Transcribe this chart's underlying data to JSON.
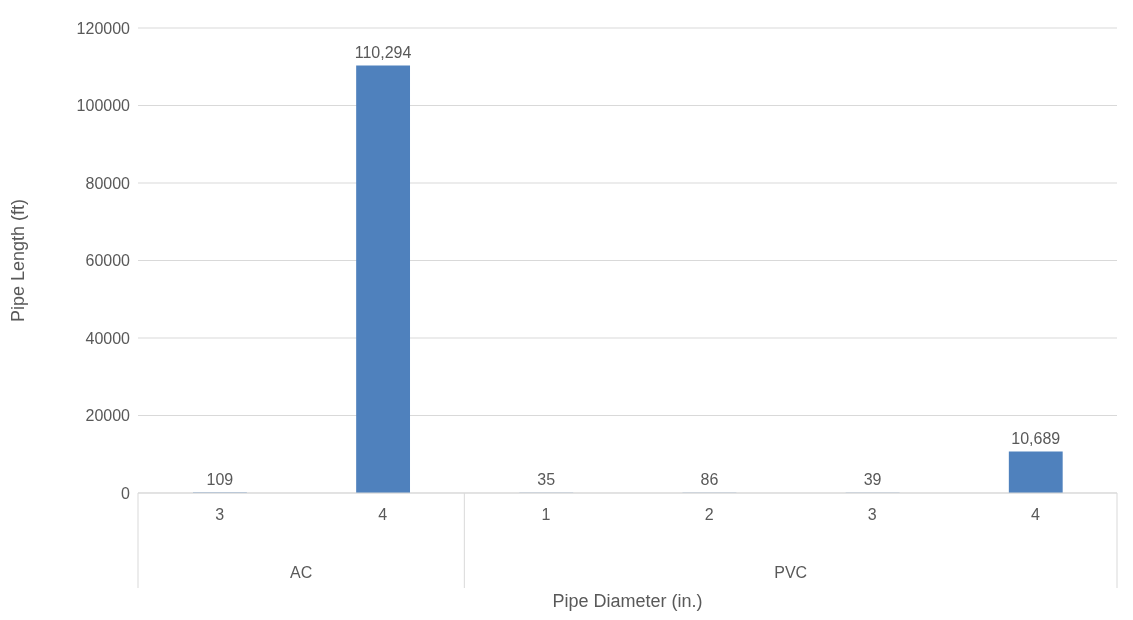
{
  "chart_data": {
    "type": "bar",
    "xlabel": "Pipe Diameter (in.)",
    "ylabel": "Pipe Length (ft)",
    "categories": [
      "3",
      "4",
      "1",
      "2",
      "3",
      "4"
    ],
    "values": [
      109,
      110294,
      35,
      86,
      39,
      10689
    ],
    "value_labels": [
      "109",
      "110,294",
      "35",
      "86",
      "39",
      "10,689"
    ],
    "color": "#4f81bd",
    "ylim": [
      0,
      120000
    ],
    "yticks": [
      0,
      20000,
      40000,
      60000,
      80000,
      100000,
      120000
    ],
    "grid": "y",
    "legend": false,
    "annotations": [
      "AC",
      "PVC"
    ]
  }
}
